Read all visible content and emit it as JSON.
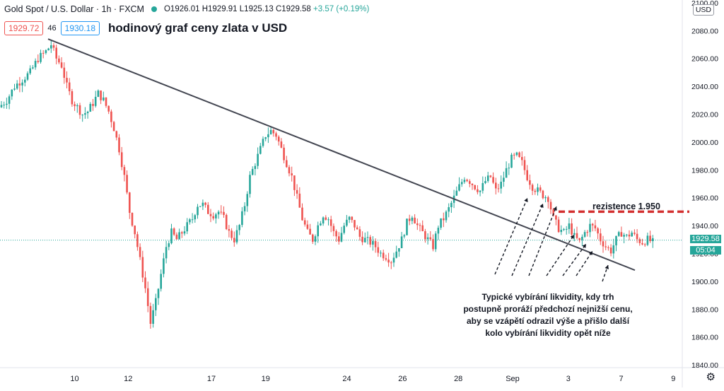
{
  "header": {
    "symbol": "Gold Spot / U.S. Dollar · 1h · FXCM",
    "open": "O1926.01",
    "high": "H1929.91",
    "low": "L1925.13",
    "close": "C1929.58",
    "change": "+3.57 (+0.19%)",
    "bid": "1929.72",
    "spread": "46",
    "ask": "1930.18",
    "title": "hodinový graf ceny zlata v USD"
  },
  "currency_label": "USD",
  "settings_icon": "gear-icon",
  "last_price": "1929.58",
  "countdown": "05:04",
  "colors": {
    "up": "#26a69a",
    "down": "#ef5350",
    "trendline": "#434651",
    "resistance": "#d32f2f",
    "arrows": "#131722"
  },
  "resistance_label": "rezistence 1.950",
  "annotation": [
    "Typické vybírání likvidity, kdy trh",
    "postupně proráží předchozí nejnižší cenu,",
    "aby se vzápětí odrazil výše a přišlo další",
    "kolo vybírání likvidity opět níže"
  ],
  "chart_data": {
    "type": "candlestick",
    "title": "hodinový graf ceny zlata v USD",
    "x_ticks": [
      "10",
      "12",
      "17",
      "19",
      "24",
      "26",
      "28",
      "Sep",
      "3",
      "7",
      "9"
    ],
    "y_ticks": [
      1840,
      1860,
      1880,
      1900,
      1920,
      1940,
      1960,
      1980,
      2000,
      2020,
      2040,
      2060,
      2080,
      2100
    ],
    "ylim": [
      1838,
      2102
    ],
    "path": [
      [
        0,
        2025
      ],
      [
        3,
        2030
      ],
      [
        6,
        2040
      ],
      [
        9,
        2045
      ],
      [
        12,
        2050
      ],
      [
        15,
        2060
      ],
      [
        18,
        2065
      ],
      [
        20,
        2070
      ],
      [
        22,
        2060
      ],
      [
        24,
        2055
      ],
      [
        26,
        2040
      ],
      [
        28,
        2030
      ],
      [
        30,
        2025
      ],
      [
        32,
        2020
      ],
      [
        34,
        2022
      ],
      [
        36,
        2028
      ],
      [
        38,
        2035
      ],
      [
        40,
        2030
      ],
      [
        42,
        2022
      ],
      [
        44,
        2010
      ],
      [
        46,
        1995
      ],
      [
        48,
        1975
      ],
      [
        50,
        1950
      ],
      [
        52,
        1935
      ],
      [
        54,
        1915
      ],
      [
        56,
        1895
      ],
      [
        58,
        1870
      ],
      [
        60,
        1885
      ],
      [
        62,
        1905
      ],
      [
        64,
        1925
      ],
      [
        66,
        1935
      ],
      [
        68,
        1930
      ],
      [
        70,
        1935
      ],
      [
        72,
        1940
      ],
      [
        74,
        1945
      ],
      [
        76,
        1955
      ],
      [
        78,
        1955
      ],
      [
        80,
        1950
      ],
      [
        82,
        1948
      ],
      [
        84,
        1950
      ],
      [
        86,
        1945
      ],
      [
        88,
        1935
      ],
      [
        90,
        1930
      ],
      [
        92,
        1940
      ],
      [
        94,
        1955
      ],
      [
        96,
        1975
      ],
      [
        98,
        1985
      ],
      [
        100,
        1995
      ],
      [
        102,
        2005
      ],
      [
        104,
        2008
      ],
      [
        106,
        2005
      ],
      [
        108,
        1995
      ],
      [
        110,
        1985
      ],
      [
        112,
        1975
      ],
      [
        114,
        1960
      ],
      [
        116,
        1945
      ],
      [
        118,
        1935
      ],
      [
        120,
        1930
      ],
      [
        122,
        1940
      ],
      [
        124,
        1948
      ],
      [
        126,
        1945
      ],
      [
        128,
        1935
      ],
      [
        130,
        1930
      ],
      [
        132,
        1940
      ],
      [
        134,
        1945
      ],
      [
        136,
        1940
      ],
      [
        138,
        1932
      ],
      [
        140,
        1930
      ],
      [
        142,
        1928
      ],
      [
        144,
        1925
      ],
      [
        146,
        1920
      ],
      [
        148,
        1918
      ],
      [
        150,
        1915
      ],
      [
        152,
        1922
      ],
      [
        154,
        1930
      ],
      [
        156,
        1942
      ],
      [
        158,
        1948
      ],
      [
        160,
        1940
      ],
      [
        162,
        1935
      ],
      [
        164,
        1930
      ],
      [
        166,
        1925
      ],
      [
        168,
        1940
      ],
      [
        170,
        1945
      ],
      [
        172,
        1952
      ],
      [
        174,
        1960
      ],
      [
        176,
        1968
      ],
      [
        178,
        1975
      ],
      [
        180,
        1972
      ],
      [
        182,
        1968
      ],
      [
        184,
        1965
      ],
      [
        186,
        1972
      ],
      [
        188,
        1975
      ],
      [
        190,
        1965
      ],
      [
        192,
        1970
      ],
      [
        194,
        1980
      ],
      [
        196,
        1988
      ],
      [
        198,
        1990
      ],
      [
        200,
        1985
      ],
      [
        202,
        1975
      ],
      [
        204,
        1968
      ],
      [
        206,
        1965
      ],
      [
        208,
        1962
      ],
      [
        210,
        1960
      ],
      [
        212,
        1945
      ],
      [
        214,
        1938
      ],
      [
        216,
        1935
      ],
      [
        218,
        1940
      ],
      [
        220,
        1932
      ],
      [
        222,
        1928
      ],
      [
        224,
        1935
      ],
      [
        226,
        1940
      ],
      [
        228,
        1938
      ],
      [
        230,
        1930
      ],
      [
        232,
        1925
      ],
      [
        234,
        1922
      ],
      [
        236,
        1930
      ],
      [
        238,
        1935
      ],
      [
        240,
        1932
      ],
      [
        242,
        1935
      ],
      [
        244,
        1930
      ],
      [
        246,
        1928
      ],
      [
        248,
        1930
      ],
      [
        250,
        1928
      ]
    ],
    "resistance": 1950,
    "current_price": 1929.58
  }
}
